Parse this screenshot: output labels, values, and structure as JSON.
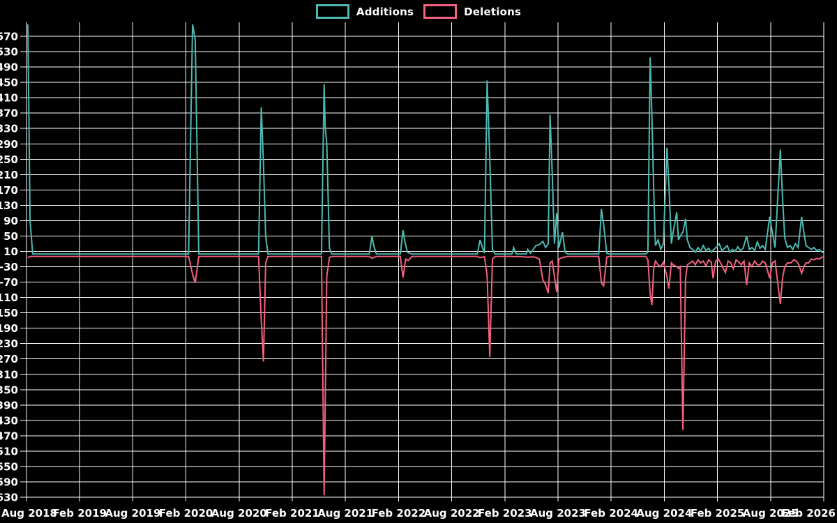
{
  "legend": {
    "additions_label": "Additions",
    "deletions_label": "Deletions"
  },
  "colors": {
    "background": "#000000",
    "grid": "#FFFFFF",
    "text": "#FFFFFF",
    "additions": "#4DB9B2",
    "deletions": "#F2617F"
  },
  "chart_data": {
    "type": "line",
    "title": "",
    "xlabel": "",
    "ylabel": "",
    "grid": "on",
    "legend_position": "top-center",
    "ylim": [
      -630,
      570
    ],
    "y_tick_step": 40,
    "y_ticks": [
      570,
      530,
      490,
      450,
      410,
      370,
      330,
      290,
      250,
      210,
      170,
      130,
      90,
      50,
      10,
      -30,
      -70,
      -110,
      -150,
      -190,
      -230,
      -270,
      -310,
      -350,
      -390,
      -430,
      -470,
      -510,
      -550,
      -590,
      -630
    ],
    "x_tick_labels": [
      "Aug 2018",
      "Feb 2019",
      "Aug 2019",
      "Feb 2020",
      "Aug 2020",
      "Feb 2021",
      "Aug 2021",
      "Feb 2022",
      "Aug 2022",
      "Feb 2023",
      "Aug 2023",
      "Feb 2024",
      "Aug 2024",
      "Feb 2025",
      "Aug 2025",
      "Feb 2026"
    ],
    "x_unit": "months_since_Aug_2018",
    "x_range_months": [
      0,
      90
    ],
    "series": [
      {
        "name": "Additions",
        "color": "#4DB9B2",
        "points": [
          [
            0.15,
            605
          ],
          [
            0.4,
            90
          ],
          [
            0.7,
            3
          ],
          [
            18.3,
            3
          ],
          [
            18.75,
            610
          ],
          [
            19.05,
            560
          ],
          [
            19.45,
            3
          ],
          [
            26.2,
            3
          ],
          [
            26.5,
            385
          ],
          [
            26.75,
            240
          ],
          [
            27.0,
            50
          ],
          [
            27.25,
            3
          ],
          [
            33.3,
            3
          ],
          [
            33.6,
            445
          ],
          [
            33.72,
            335
          ],
          [
            33.9,
            290
          ],
          [
            34.2,
            18
          ],
          [
            34.45,
            3
          ],
          [
            38.7,
            3
          ],
          [
            39.0,
            50
          ],
          [
            39.2,
            25
          ],
          [
            39.5,
            3
          ],
          [
            42.2,
            3
          ],
          [
            42.5,
            65
          ],
          [
            42.72,
            35
          ],
          [
            43.0,
            8
          ],
          [
            43.5,
            3
          ],
          [
            50.9,
            3
          ],
          [
            51.2,
            40
          ],
          [
            51.45,
            22
          ],
          [
            51.7,
            5
          ],
          [
            52.0,
            455
          ],
          [
            52.3,
            250
          ],
          [
            52.6,
            16
          ],
          [
            52.9,
            3
          ],
          [
            54.8,
            3
          ],
          [
            55.0,
            20
          ],
          [
            55.3,
            3
          ],
          [
            56.4,
            3
          ],
          [
            56.6,
            15
          ],
          [
            56.9,
            5
          ],
          [
            57.5,
            25
          ],
          [
            57.9,
            28
          ],
          [
            58.3,
            36
          ],
          [
            58.6,
            20
          ],
          [
            58.9,
            30
          ],
          [
            59.1,
            365
          ],
          [
            59.35,
            215
          ],
          [
            59.6,
            30
          ],
          [
            59.85,
            110
          ],
          [
            60.1,
            20
          ],
          [
            60.5,
            60
          ],
          [
            60.8,
            8
          ],
          [
            61.1,
            3
          ],
          [
            64.6,
            3
          ],
          [
            64.9,
            120
          ],
          [
            65.15,
            80
          ],
          [
            65.5,
            5
          ],
          [
            65.8,
            3
          ],
          [
            69.9,
            3
          ],
          [
            70.15,
            8
          ],
          [
            70.4,
            515
          ],
          [
            70.6,
            365
          ],
          [
            70.8,
            170
          ],
          [
            71.0,
            25
          ],
          [
            71.3,
            40
          ],
          [
            71.6,
            15
          ],
          [
            71.9,
            30
          ],
          [
            72.3,
            280
          ],
          [
            72.5,
            190
          ],
          [
            72.8,
            30
          ],
          [
            73.0,
            60
          ],
          [
            73.4,
            112
          ],
          [
            73.6,
            40
          ],
          [
            73.8,
            50
          ],
          [
            74.1,
            60
          ],
          [
            74.4,
            95
          ],
          [
            74.6,
            40
          ],
          [
            74.9,
            20
          ],
          [
            75.2,
            15
          ],
          [
            75.5,
            8
          ],
          [
            75.8,
            20
          ],
          [
            76.1,
            10
          ],
          [
            76.4,
            25
          ],
          [
            76.7,
            12
          ],
          [
            77.0,
            18
          ],
          [
            77.3,
            8
          ],
          [
            77.6,
            15
          ],
          [
            77.9,
            22
          ],
          [
            78.2,
            30
          ],
          [
            78.5,
            12
          ],
          [
            78.8,
            18
          ],
          [
            79.1,
            25
          ],
          [
            79.4,
            8
          ],
          [
            79.7,
            15
          ],
          [
            80.0,
            10
          ],
          [
            80.3,
            22
          ],
          [
            80.6,
            12
          ],
          [
            80.9,
            18
          ],
          [
            81.3,
            50
          ],
          [
            81.6,
            15
          ],
          [
            81.9,
            20
          ],
          [
            82.2,
            12
          ],
          [
            82.5,
            35
          ],
          [
            82.8,
            18
          ],
          [
            83.1,
            25
          ],
          [
            83.4,
            15
          ],
          [
            83.9,
            100
          ],
          [
            84.2,
            60
          ],
          [
            84.5,
            20
          ],
          [
            85.1,
            275
          ],
          [
            85.35,
            150
          ],
          [
            85.6,
            45
          ],
          [
            85.9,
            20
          ],
          [
            86.2,
            25
          ],
          [
            86.5,
            15
          ],
          [
            86.8,
            30
          ],
          [
            87.1,
            20
          ],
          [
            87.5,
            100
          ],
          [
            87.75,
            60
          ],
          [
            88.0,
            25
          ],
          [
            88.3,
            20
          ],
          [
            88.6,
            15
          ],
          [
            88.9,
            20
          ],
          [
            89.2,
            12
          ],
          [
            89.5,
            15
          ],
          [
            89.8,
            8
          ],
          [
            90,
            6
          ]
        ]
      },
      {
        "name": "Deletions",
        "color": "#F2617F",
        "points": [
          [
            0.15,
            -6
          ],
          [
            0.45,
            -3
          ],
          [
            18.3,
            -3
          ],
          [
            18.75,
            -50
          ],
          [
            19.05,
            -72
          ],
          [
            19.45,
            -3
          ],
          [
            26.2,
            -3
          ],
          [
            26.5,
            -170
          ],
          [
            26.75,
            -277
          ],
          [
            27.0,
            -20
          ],
          [
            27.25,
            -3
          ],
          [
            33.3,
            -3
          ],
          [
            33.6,
            -625
          ],
          [
            33.9,
            -55
          ],
          [
            34.2,
            -6
          ],
          [
            34.45,
            -3
          ],
          [
            38.7,
            -3
          ],
          [
            39.0,
            -8
          ],
          [
            39.5,
            -3
          ],
          [
            42.2,
            -3
          ],
          [
            42.5,
            -58
          ],
          [
            42.8,
            -10
          ],
          [
            43.1,
            -14
          ],
          [
            43.5,
            -3
          ],
          [
            50.9,
            -3
          ],
          [
            51.2,
            -6
          ],
          [
            51.7,
            -4
          ],
          [
            52.0,
            -54
          ],
          [
            52.3,
            -265
          ],
          [
            52.6,
            -10
          ],
          [
            52.9,
            -3
          ],
          [
            54.8,
            -3
          ],
          [
            55.0,
            -4
          ],
          [
            55.4,
            -3
          ],
          [
            56.6,
            -5
          ],
          [
            57.2,
            -4
          ],
          [
            57.5,
            -6
          ],
          [
            57.9,
            -10
          ],
          [
            58.3,
            -65
          ],
          [
            58.6,
            -77
          ],
          [
            58.9,
            -99
          ],
          [
            59.1,
            -20
          ],
          [
            59.35,
            -15
          ],
          [
            59.85,
            -96
          ],
          [
            60.1,
            -10
          ],
          [
            60.5,
            -6
          ],
          [
            61.1,
            -3
          ],
          [
            64.6,
            -3
          ],
          [
            64.9,
            -72
          ],
          [
            65.15,
            -80
          ],
          [
            65.5,
            -5
          ],
          [
            65.8,
            -3
          ],
          [
            69.9,
            -3
          ],
          [
            70.15,
            -12
          ],
          [
            70.4,
            -100
          ],
          [
            70.6,
            -130
          ],
          [
            70.8,
            -35
          ],
          [
            71.0,
            -15
          ],
          [
            71.3,
            -25
          ],
          [
            71.6,
            -30
          ],
          [
            71.9,
            -18
          ],
          [
            72.3,
            -55
          ],
          [
            72.5,
            -87
          ],
          [
            72.8,
            -20
          ],
          [
            73.0,
            -25
          ],
          [
            73.4,
            -30
          ],
          [
            73.6,
            -35
          ],
          [
            73.8,
            -30
          ],
          [
            74.1,
            -455
          ],
          [
            74.4,
            -60
          ],
          [
            74.6,
            -25
          ],
          [
            74.9,
            -20
          ],
          [
            75.2,
            -15
          ],
          [
            75.5,
            -25
          ],
          [
            75.8,
            -12
          ],
          [
            76.1,
            -20
          ],
          [
            76.4,
            -15
          ],
          [
            76.7,
            -28
          ],
          [
            77.0,
            -12
          ],
          [
            77.3,
            -18
          ],
          [
            77.5,
            -60
          ],
          [
            77.8,
            -15
          ],
          [
            78.1,
            -10
          ],
          [
            78.4,
            -22
          ],
          [
            78.9,
            -45
          ],
          [
            79.2,
            -15
          ],
          [
            79.5,
            -20
          ],
          [
            79.8,
            -35
          ],
          [
            80.1,
            -12
          ],
          [
            80.4,
            -18
          ],
          [
            80.7,
            -25
          ],
          [
            81.0,
            -15
          ],
          [
            81.3,
            -78
          ],
          [
            81.6,
            -20
          ],
          [
            81.9,
            -30
          ],
          [
            82.2,
            -15
          ],
          [
            82.5,
            -25
          ],
          [
            82.8,
            -25
          ],
          [
            83.1,
            -15
          ],
          [
            83.4,
            -20
          ],
          [
            83.9,
            -60
          ],
          [
            84.2,
            -20
          ],
          [
            84.5,
            -15
          ],
          [
            85.1,
            -127
          ],
          [
            85.35,
            -60
          ],
          [
            85.6,
            -30
          ],
          [
            85.9,
            -20
          ],
          [
            86.3,
            -20
          ],
          [
            86.6,
            -12
          ],
          [
            86.9,
            -15
          ],
          [
            87.2,
            -25
          ],
          [
            87.5,
            -47
          ],
          [
            87.75,
            -30
          ],
          [
            88.0,
            -20
          ],
          [
            88.3,
            -20
          ],
          [
            88.6,
            -10
          ],
          [
            88.9,
            -12
          ],
          [
            89.2,
            -8
          ],
          [
            89.5,
            -10
          ],
          [
            89.8,
            -5
          ],
          [
            90,
            -4
          ]
        ]
      }
    ]
  }
}
